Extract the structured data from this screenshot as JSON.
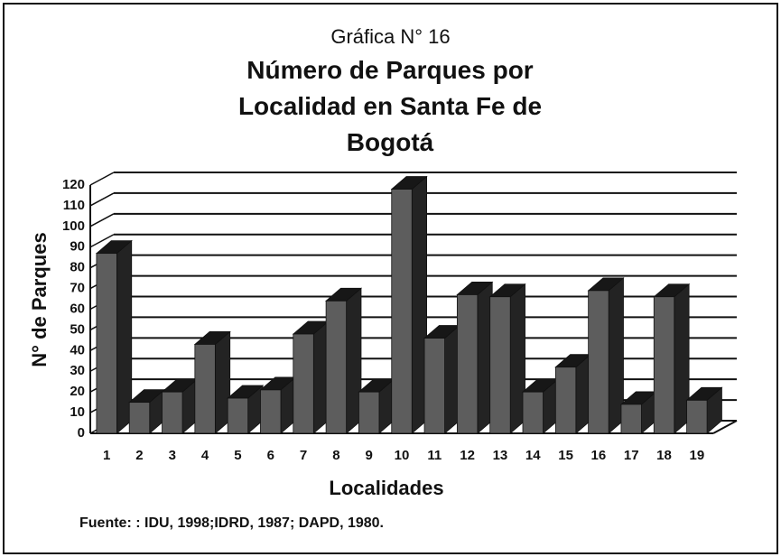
{
  "chart_data": {
    "type": "bar",
    "subtitle": "Gráfica N° 16",
    "title": "Número de Parques por Localidad en Santa Fe de Bogotá",
    "x_label": "Localidades",
    "y_label": "N° de Parques",
    "source": "Fuente:  : IDU, 1998;IDRD, 1987; DAPD, 1980.",
    "categories": [
      "1",
      "2",
      "3",
      "4",
      "5",
      "6",
      "7",
      "8",
      "9",
      "10",
      "11",
      "12",
      "13",
      "14",
      "15",
      "16",
      "17",
      "18",
      "19"
    ],
    "values": [
      87,
      15,
      20,
      43,
      17,
      21,
      48,
      64,
      20,
      118,
      46,
      67,
      66,
      20,
      32,
      69,
      14,
      66,
      16
    ],
    "color": "#3a3a3a",
    "ylim": [
      0,
      120
    ],
    "yticks": [
      0,
      10,
      20,
      30,
      40,
      50,
      60,
      70,
      80,
      90,
      100,
      110,
      120
    ],
    "grid": true
  }
}
